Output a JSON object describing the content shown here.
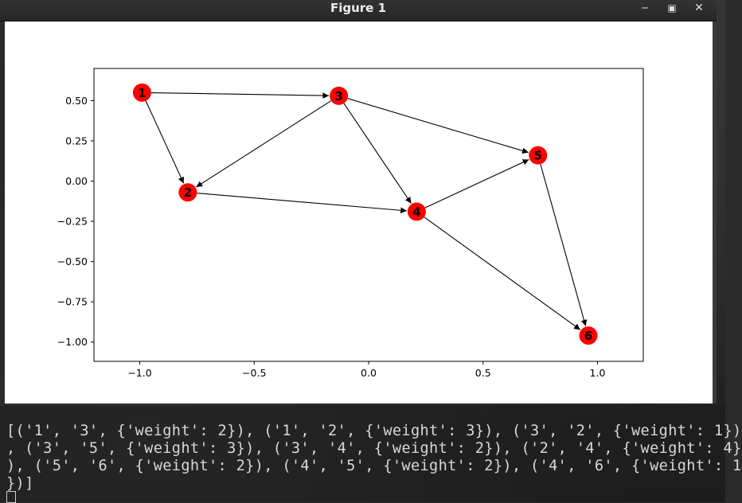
{
  "window": {
    "title": "Figure 1",
    "minimize_icon": "minimize-icon",
    "maximize_icon": "maximize-icon",
    "close_icon": "close-icon"
  },
  "chart_data": {
    "type": "network-graph",
    "xlim": [
      -1.2,
      1.2
    ],
    "ylim": [
      -1.12,
      0.7
    ],
    "x_ticks": [
      "−1.0",
      "−0.5",
      "0.0",
      "0.5",
      "1.0"
    ],
    "x_tick_values": [
      -1.0,
      -0.5,
      0.0,
      0.5,
      1.0
    ],
    "y_ticks": [
      "0.50",
      "0.25",
      "0.00",
      "−0.25",
      "−0.50",
      "−0.75",
      "−1.00"
    ],
    "y_tick_values": [
      0.5,
      0.25,
      0.0,
      -0.25,
      -0.5,
      -0.75,
      -1.0
    ],
    "node_color": "#ff0000",
    "edge_color": "#000000",
    "nodes": [
      {
        "label": "1",
        "x": -0.99,
        "y": 0.55
      },
      {
        "label": "2",
        "x": -0.79,
        "y": -0.07
      },
      {
        "label": "3",
        "x": -0.13,
        "y": 0.53
      },
      {
        "label": "4",
        "x": 0.21,
        "y": -0.19
      },
      {
        "label": "5",
        "x": 0.74,
        "y": 0.16
      },
      {
        "label": "6",
        "x": 0.96,
        "y": -0.96
      }
    ],
    "edges": [
      {
        "from": "1",
        "to": "3"
      },
      {
        "from": "1",
        "to": "2"
      },
      {
        "from": "3",
        "to": "2"
      },
      {
        "from": "3",
        "to": "5"
      },
      {
        "from": "3",
        "to": "4"
      },
      {
        "from": "2",
        "to": "4"
      },
      {
        "from": "5",
        "to": "6"
      },
      {
        "from": "4",
        "to": "5"
      },
      {
        "from": "4",
        "to": "6"
      }
    ]
  },
  "terminal": {
    "lines": [
      "[('1', '3', {'weight': 2}), ('1', '2', {'weight': 3}), ('3', '2', {'weight': 1})",
      ", ('3', '5', {'weight': 3}), ('3', '4', {'weight': 2}), ('2', '4', {'weight': 4}",
      "), ('5', '6', {'weight': 2}), ('4', '5', {'weight': 2}), ('4', '6', {'weight': 1",
      "})]"
    ]
  }
}
